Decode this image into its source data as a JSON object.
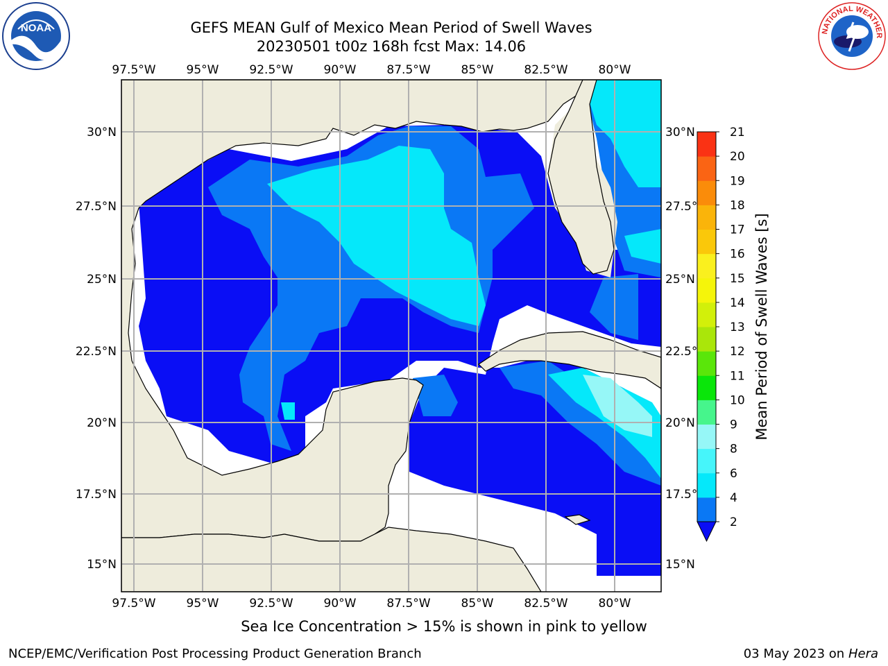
{
  "header": {
    "title_line1": "GEFS MEAN Gulf of Mexico Mean Period of Swell Waves",
    "title_line2": "20230501 t00z 168h fcst   Max: 14.06"
  },
  "logos": {
    "left": "noaa-logo",
    "right": "national-weather-service-logo",
    "right_text": "NATIONAL WEATHER SERVICE",
    "left_text": "NOAA"
  },
  "map": {
    "lon_labels": [
      "97.5°W",
      "95°W",
      "92.5°W",
      "90°W",
      "87.5°W",
      "85°W",
      "82.5°W",
      "80°W"
    ],
    "lat_labels_left": [
      "30°N",
      "27.5°N",
      "25°N",
      "22.5°N",
      "20°N",
      "17.5°N",
      "15°N"
    ],
    "lat_labels_right": [
      "30°N",
      "27.5°N",
      "25°N",
      "22.5°N",
      "20°N",
      "17.5°N",
      "15°N"
    ],
    "colors": {
      "land": "#eeecdc",
      "sea_missing": "#ffffff",
      "grid": "#b0b0b0",
      "coast": "#000000"
    }
  },
  "colorbar": {
    "label": "Mean Period of Swell Waves [s]",
    "ticks": [
      "2",
      "4",
      "6",
      "8",
      "9",
      "10",
      "11",
      "12",
      "13",
      "14",
      "15",
      "16",
      "17",
      "18",
      "19",
      "20",
      "21"
    ],
    "colors": [
      "#0a0ef5",
      "#0a78f5",
      "#05e8fa",
      "#46f5fa",
      "#96f7f7",
      "#46f58c",
      "#0ae60a",
      "#5ae60a",
      "#aae60a",
      "#d2f00a",
      "#f5f50a",
      "#faf01e",
      "#fac80a",
      "#fab40a",
      "#fa8c0a",
      "#fa6414",
      "#fa3214",
      "#fa0a0a"
    ],
    "extend": "min"
  },
  "footer": {
    "sea_ice_note": "Sea Ice Concentration > 15% is shown in pink to yellow",
    "credit": "NCEP/EMC/Verification Post Processing Product Generation Branch",
    "date": "03 May 2023 on",
    "machine": "Hera"
  }
}
